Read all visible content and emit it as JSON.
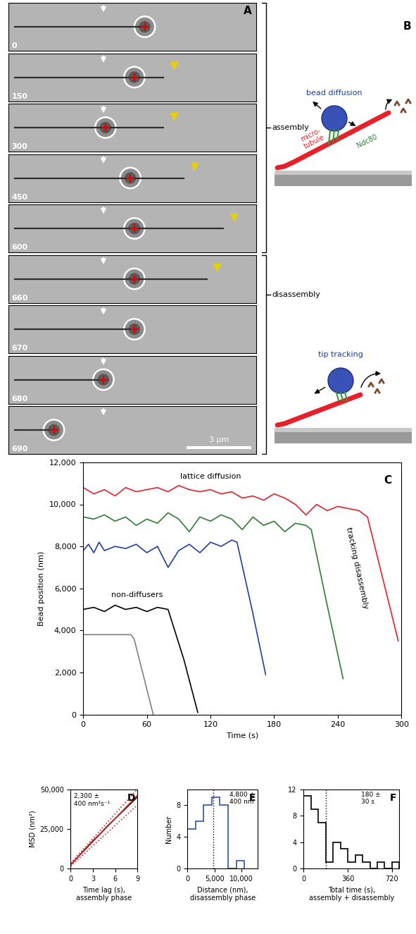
{
  "panel_a": {
    "panel": "A",
    "frames": [
      {
        "time": 0,
        "bead_position_um": 6.6,
        "tip_position_um": 6.6,
        "tip_marker": false
      },
      {
        "time": 150,
        "bead_position_um": 6.1,
        "tip_position_um": 7.5,
        "tip_marker": true
      },
      {
        "time": 300,
        "bead_position_um": 4.7,
        "tip_position_um": 7.5,
        "tip_marker": true
      },
      {
        "time": 450,
        "bead_position_um": 5.9,
        "tip_position_um": 8.5,
        "tip_marker": true
      },
      {
        "time": 600,
        "bead_position_um": 6.1,
        "tip_position_um": 10.4,
        "tip_marker": true
      },
      {
        "time": 660,
        "bead_position_um": 6.1,
        "tip_position_um": 9.6,
        "tip_marker": true
      },
      {
        "time": 670,
        "bead_position_um": 6.1,
        "tip_position_um": 6.1,
        "tip_marker": false
      },
      {
        "time": 680,
        "bead_position_um": 4.6,
        "tip_position_um": 4.6,
        "tip_marker": false
      },
      {
        "time": 690,
        "bead_position_um": 2.2,
        "tip_position_um": 2.2,
        "tip_marker": false
      }
    ],
    "scale_bar": {
      "length_um": 3,
      "label": "3 μm"
    },
    "phases": [
      {
        "label": "assembly",
        "first_time": 0,
        "last_time": 600
      },
      {
        "label": "disassembly",
        "first_time": 660,
        "last_time": 690
      }
    ]
  },
  "panel_b": {
    "panel": "B",
    "top": {
      "title": "bead diffusion",
      "microtubule": "micro-\ntubule",
      "protein": "Ndc80"
    },
    "bottom": {
      "title": "tip tracking"
    }
  },
  "chart_data": [
    {
      "panel": "C",
      "type": "line",
      "x_label": "Time (s)",
      "y_label": "Bead position (nm)",
      "xlim": [
        0,
        300
      ],
      "xticks": [
        0,
        60,
        120,
        180,
        240,
        300
      ],
      "ylim": [
        0,
        12000
      ],
      "yticks": [
        0,
        {
          "value": 2000,
          "label": "2,000"
        },
        {
          "value": 4000,
          "label": "4,000"
        },
        {
          "value": 6000,
          "label": "6,000"
        },
        {
          "value": 8000,
          "label": "8,000"
        },
        {
          "value": 10000,
          "label": "10,000"
        },
        {
          "value": 12000,
          "label": "12,000"
        }
      ],
      "annotations": [
        "lattice diffusion",
        "non-diffusers",
        "tracking disassembly"
      ],
      "series": [
        {
          "color": "#e8202a",
          "x": [
            0,
            10,
            20,
            30,
            40,
            50,
            60,
            70,
            80,
            90,
            100,
            110,
            120,
            130,
            140,
            150,
            160,
            170,
            180,
            190,
            200,
            210,
            220,
            230,
            240,
            250,
            260,
            268,
            297
          ],
          "values": [
            10800,
            10500,
            10700,
            10400,
            10800,
            10600,
            10700,
            10800,
            10600,
            10900,
            10700,
            10600,
            10700,
            10500,
            10600,
            10300,
            10400,
            10200,
            10500,
            10300,
            10000,
            9500,
            10000,
            9700,
            9900,
            9800,
            9700,
            9400,
            3500
          ]
        },
        {
          "color": "#2e7d32",
          "x": [
            0,
            10,
            20,
            30,
            40,
            50,
            60,
            70,
            80,
            90,
            100,
            110,
            120,
            130,
            140,
            150,
            160,
            170,
            180,
            190,
            200,
            210,
            215,
            230,
            245
          ],
          "values": [
            9400,
            9300,
            9500,
            9200,
            9400,
            9000,
            9300,
            9100,
            9600,
            9300,
            8700,
            9400,
            9200,
            9500,
            9300,
            8800,
            9400,
            9000,
            9200,
            8700,
            9100,
            9000,
            8800,
            5200,
            1700
          ]
        },
        {
          "color": "#1f3fa0",
          "x": [
            0,
            5,
            10,
            15,
            20,
            30,
            40,
            50,
            60,
            70,
            80,
            90,
            100,
            110,
            120,
            130,
            140,
            145,
            160,
            172
          ],
          "values": [
            7800,
            8100,
            7700,
            8200,
            7800,
            8000,
            7900,
            8100,
            7700,
            8000,
            7000,
            7800,
            8100,
            7700,
            8200,
            8000,
            8300,
            8200,
            4800,
            1900
          ]
        },
        {
          "color": "#000000",
          "x": [
            0,
            10,
            20,
            30,
            40,
            50,
            60,
            70,
            80,
            95,
            108
          ],
          "values": [
            5000,
            5100,
            4900,
            5200,
            5000,
            5100,
            4900,
            5100,
            5000,
            2600,
            100
          ]
        },
        {
          "color": "#808080",
          "x": [
            0,
            45,
            48,
            66
          ],
          "values": [
            3800,
            3800,
            3600,
            0
          ]
        }
      ]
    },
    {
      "panel": "D",
      "type": "line",
      "x_label": "Time lag (s),\nassembly phase",
      "y_label": "MSD (nm²)",
      "xlim": [
        0,
        9
      ],
      "xticks": [
        0,
        3,
        6,
        9
      ],
      "ylim": [
        0,
        50000
      ],
      "yticks": [
        0,
        {
          "value": 25000,
          "label": "25,000"
        },
        {
          "value": 50000,
          "label": "50,000"
        }
      ],
      "annotation": "2,300 ±\n400 nm²s⁻¹",
      "series": [
        {
          "color": "#000000",
          "line_style": "solid",
          "x": [
            0,
            1,
            2,
            3,
            4,
            5,
            6,
            7,
            8,
            9
          ],
          "values": [
            2500,
            7500,
            12500,
            17500,
            22000,
            27000,
            31500,
            36000,
            40500,
            45000
          ]
        },
        {
          "color": "#d62728",
          "line_style": "solid",
          "x": [
            0,
            9
          ],
          "values": [
            2500,
            46000
          ]
        },
        {
          "color": "#d62728",
          "line_style": "dotted",
          "x": [
            0,
            9
          ],
          "values": [
            3500,
            50000
          ]
        },
        {
          "color": "#d62728",
          "line_style": "dotted",
          "x": [
            0,
            9
          ],
          "values": [
            1500,
            40000
          ]
        }
      ]
    },
    {
      "panel": "E",
      "type": "histogram",
      "x_label": "Distance (nm),\ndisassembly phase",
      "y_label": "Number",
      "bins": [
        0,
        1500,
        3000,
        4500,
        6000,
        7500,
        9000,
        10500
      ],
      "counts": [
        5,
        6,
        8,
        9,
        8,
        0,
        1
      ],
      "color": "#3050b0",
      "mean": 4800,
      "annotation": "4,800 ±\n400 nm",
      "xlim": [
        0,
        13000
      ],
      "xticks": [
        0,
        {
          "value": 5000,
          "label": "5,000"
        },
        {
          "value": 10000,
          "label": "10,000"
        }
      ],
      "ylim": [
        0,
        10
      ],
      "yticks": [
        0,
        4,
        8
      ]
    },
    {
      "panel": "F",
      "type": "histogram",
      "x_label": "Total time (s),\nassembly + disassembly",
      "y_label": "",
      "bins": [
        0,
        60,
        120,
        180,
        240,
        300,
        360,
        420,
        480,
        540,
        600,
        660,
        720,
        780
      ],
      "counts": [
        11,
        9,
        7,
        1,
        4,
        3,
        1,
        2,
        1,
        0,
        1,
        0,
        1
      ],
      "color": "#000000",
      "mean": 180,
      "annotation": "180 ±\n30 s",
      "xlim": [
        0,
        780
      ],
      "xticks": [
        0,
        360,
        720
      ],
      "ylim": [
        0,
        12
      ],
      "yticks": [
        0,
        4,
        8,
        12
      ]
    }
  ]
}
